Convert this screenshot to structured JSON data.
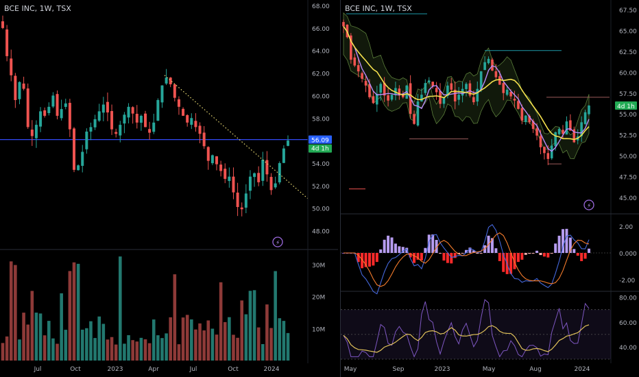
{
  "colors": {
    "up": "#26a69a",
    "down": "#ef5350",
    "volume_up": "#22786f",
    "volume_down": "#8e3a38",
    "hline": "#3349f5",
    "price_badge": "#2962ff",
    "countdown_badge": "#22ab55",
    "trend": "#f2e277",
    "ma_yellow": "#f4e04d",
    "ma_purple": "#b98bfa",
    "cloud": "#9c5b5b",
    "macd": "#4568dc",
    "signal": "#f57c2c",
    "rsi": "#7e57c2",
    "rsi_ma": "#e0c15a"
  },
  "left_chart": {
    "title": "BCE INC, 1W, TSX",
    "price_ticks": [
      "68.00",
      "66.00",
      "64.00",
      "62.00",
      "60.00",
      "58.00",
      "56.00",
      "54.00",
      "52.00",
      "50.00",
      "48.00"
    ],
    "last_price_badge": "56.09",
    "countdown_badge": "4d 1h",
    "volume_ticks": [
      "30M",
      "20M",
      "10M"
    ],
    "x_labels": [
      "Jul",
      "Oct",
      "2023",
      "Apr",
      "Jul",
      "Oct",
      "2024"
    ],
    "bolt_icon": "bolt-icon"
  },
  "right_chart": {
    "title": "BCE INC, 1W, TSX",
    "price_ticks": [
      "67.50",
      "65.00",
      "62.50",
      "60.00",
      "57.50",
      "55.00",
      "52.50",
      "50.00",
      "47.50",
      "45.00"
    ],
    "countdown_badge": "4d 1h",
    "macd_ticks": [
      "2.00",
      "0.000",
      "-2.00"
    ],
    "rsi_ticks": [
      "80.00",
      "60.00",
      "40.00"
    ],
    "x_labels": [
      "May",
      "Sep",
      "2023",
      "May",
      "Aug",
      "2024"
    ],
    "bolt_icon": "bolt-icon"
  },
  "chart_data": [
    {
      "type": "candlestick",
      "title": "BCE INC, 1W, TSX",
      "ylim": [
        47,
        68
      ],
      "x_labels": [
        "Jul",
        "Oct",
        "2023",
        "Apr",
        "Jul",
        "Oct",
        "2024"
      ],
      "horizontal_line": 56.09,
      "trendline": [
        [
          61.8,
          50.9
        ]
      ],
      "closes": [
        66,
        63.5,
        61.8,
        59.6,
        61.2,
        60.6,
        57.2,
        56.4,
        57.4,
        58.6,
        58.2,
        59.0,
        60.0,
        58.2,
        58.8,
        59.3,
        57.0,
        53.4,
        53.8,
        55.0,
        56.8,
        57.2,
        57.9,
        58.6,
        59.2,
        58.5,
        57.0,
        56.6,
        57.4,
        58.3,
        59.0,
        58.4,
        57.6,
        58.2,
        57.2,
        56.7,
        57.6,
        59.6,
        60.9,
        61.6,
        61.0,
        59.8,
        59.0,
        58.2,
        57.6,
        58.0,
        57.2,
        56.6,
        55.5,
        54.2,
        54.7,
        53.9,
        53.3,
        52.6,
        52.8,
        51.4,
        50.1,
        49.9,
        51.3,
        52.8,
        53.1,
        52.3,
        54.3,
        53.0,
        51.6,
        52.2,
        54.0,
        55.3,
        56.0
      ],
      "volume_scale_ticks": [
        "30M",
        "20M",
        "10M"
      ]
    },
    {
      "type": "candlestick",
      "title": "BCE INC, 1W, TSX",
      "ylim": [
        44,
        68
      ],
      "x_labels": [
        "May",
        "Sep",
        "2023",
        "May",
        "Aug",
        "2024"
      ],
      "closes": [
        65.5,
        64.2,
        61.5,
        60.8,
        60.1,
        59.2,
        58.4,
        57.0,
        56.3,
        57.4,
        58.6,
        57.2,
        56.6,
        57.3,
        58.1,
        57.2,
        57.0,
        58.4,
        55.0,
        53.8,
        56.5,
        57.3,
        58.7,
        59.0,
        58.3,
        57.6,
        56.2,
        57.0,
        58.4,
        57.9,
        56.5,
        57.3,
        58.0,
        58.6,
        57.2,
        56.4,
        58.0,
        60.1,
        61.2,
        61.6,
        60.2,
        59.4,
        58.5,
        57.5,
        57.9,
        57.1,
        56.6,
        55.6,
        54.2,
        54.8,
        54.0,
        53.2,
        52.4,
        51.0,
        50.3,
        49.6,
        51.2,
        52.8,
        53.2,
        52.6,
        54.1,
        53.0,
        51.6,
        52.3,
        54.0,
        55.2,
        56.0
      ],
      "macd_ylim": [
        -2.6,
        2.6
      ],
      "rsi_ylim": [
        30,
        82
      ]
    }
  ]
}
